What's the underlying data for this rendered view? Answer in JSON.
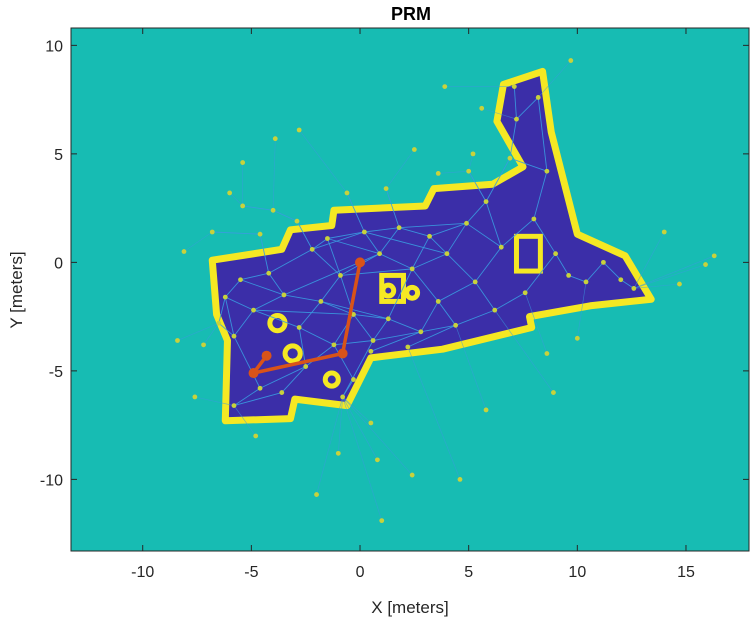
{
  "chart_data": {
    "type": "scatter",
    "title": "PRM",
    "xlabel": "X [meters]",
    "ylabel": "Y [meters]",
    "xlim": [
      -13.3,
      17.9
    ],
    "ylim": [
      -13.3,
      10.8
    ],
    "xticks": [
      -10,
      -5,
      0,
      5,
      10,
      15
    ],
    "yticks": [
      -10,
      -5,
      0,
      5,
      10
    ],
    "xtick_labels": [
      "-10",
      "-5",
      "0",
      "5",
      "10",
      "15"
    ],
    "ytick_labels": [
      "-10",
      "-5",
      "0",
      "5",
      "10"
    ],
    "grid": false,
    "legend": "none",
    "colors": {
      "background": "#17bcb3",
      "free_space": "#3b2ea8",
      "wall": "#f5e823",
      "roadmap_edge": "#3a9be0",
      "roadmap_node": "#c8d23c",
      "path": "#d95319"
    },
    "free_space_polygon": [
      [
        -6.8,
        0.1
      ],
      [
        -3.6,
        0.6
      ],
      [
        -3.2,
        1.5
      ],
      [
        -1.3,
        1.7
      ],
      [
        -1.2,
        2.4
      ],
      [
        3.0,
        2.6
      ],
      [
        3.4,
        3.4
      ],
      [
        6.1,
        3.6
      ],
      [
        7.5,
        4.4
      ],
      [
        6.3,
        6.5
      ],
      [
        6.6,
        8.2
      ],
      [
        8.4,
        8.8
      ],
      [
        8.8,
        6.0
      ],
      [
        10.0,
        1.3
      ],
      [
        12.2,
        0.3
      ],
      [
        13.4,
        -1.7
      ],
      [
        10.6,
        -2.0
      ],
      [
        7.8,
        -2.5
      ],
      [
        7.9,
        -3.0
      ],
      [
        3.8,
        -4.0
      ],
      [
        0.5,
        -4.4
      ],
      [
        -0.6,
        -6.6
      ],
      [
        -3.0,
        -6.3
      ],
      [
        -3.2,
        -7.2
      ],
      [
        -6.2,
        -7.3
      ],
      [
        -6.1,
        -3.6
      ],
      [
        -6.6,
        -2.4
      ]
    ],
    "obstacles": [
      {
        "type": "ring",
        "center": [
          -3.8,
          -2.8
        ],
        "radius": 0.35
      },
      {
        "type": "ring",
        "center": [
          -3.1,
          -4.2
        ],
        "radius": 0.35
      },
      {
        "type": "ring",
        "center": [
          -1.3,
          -5.4
        ],
        "radius": 0.3
      },
      {
        "type": "ring",
        "center": [
          2.4,
          -1.4
        ],
        "radius": 0.25
      },
      {
        "type": "ring",
        "center": [
          1.3,
          -1.3
        ],
        "radius": 0.25
      },
      {
        "type": "rect",
        "x": [
          7.2,
          8.3
        ],
        "y": [
          -0.4,
          1.2
        ]
      },
      {
        "type": "rect",
        "x": [
          1.0,
          2.0
        ],
        "y": [
          -1.8,
          -0.6
        ]
      }
    ],
    "roadmap_nodes": [
      [
        -6.2,
        -1.6
      ],
      [
        -5.8,
        -3.4
      ],
      [
        -5.5,
        -0.8
      ],
      [
        -4.9,
        -2.2
      ],
      [
        -4.6,
        -5.8
      ],
      [
        -4.2,
        -0.5
      ],
      [
        -3.5,
        -1.5
      ],
      [
        -2.8,
        -3.0
      ],
      [
        -2.5,
        -4.8
      ],
      [
        -2.2,
        0.6
      ],
      [
        -1.8,
        -1.8
      ],
      [
        -1.5,
        1.1
      ],
      [
        -1.2,
        -3.8
      ],
      [
        -0.9,
        -0.6
      ],
      [
        -0.3,
        -2.4
      ],
      [
        0.2,
        1.4
      ],
      [
        0.6,
        -3.6
      ],
      [
        0.9,
        0.4
      ],
      [
        1.3,
        -2.6
      ],
      [
        1.8,
        1.6
      ],
      [
        2.4,
        -0.3
      ],
      [
        2.8,
        -3.2
      ],
      [
        3.2,
        1.2
      ],
      [
        3.6,
        -1.8
      ],
      [
        4.0,
        0.4
      ],
      [
        4.4,
        -2.9
      ],
      [
        4.9,
        1.8
      ],
      [
        5.3,
        -0.9
      ],
      [
        5.8,
        2.8
      ],
      [
        6.2,
        -2.2
      ],
      [
        6.5,
        0.7
      ],
      [
        6.9,
        4.8
      ],
      [
        7.2,
        6.6
      ],
      [
        7.6,
        -1.4
      ],
      [
        8.0,
        2.0
      ],
      [
        8.2,
        7.6
      ],
      [
        8.6,
        4.2
      ],
      [
        9.0,
        0.4
      ],
      [
        9.6,
        -0.6
      ],
      [
        10.4,
        -0.9
      ],
      [
        11.2,
        0.0
      ],
      [
        12.0,
        -0.8
      ],
      [
        12.6,
        -1.2
      ],
      [
        -0.3,
        -5.4
      ],
      [
        -0.8,
        -6.2
      ],
      [
        -3.6,
        -6.0
      ],
      [
        -5.8,
        -6.6
      ],
      [
        0.5,
        -4.1
      ],
      [
        2.2,
        -3.9
      ],
      [
        -6.5,
        -2.8
      ],
      [
        -4.6,
        1.3
      ],
      [
        -2.9,
        1.9
      ],
      [
        -6.8,
        1.4
      ],
      [
        -5.4,
        2.6
      ],
      [
        -4.0,
        2.4
      ],
      [
        -0.6,
        3.2
      ],
      [
        1.2,
        3.4
      ],
      [
        5.0,
        4.2
      ],
      [
        7.1,
        8.1
      ]
    ],
    "roadmap_edges": [
      [
        0,
        1
      ],
      [
        0,
        2
      ],
      [
        0,
        3
      ],
      [
        1,
        3
      ],
      [
        1,
        4
      ],
      [
        2,
        5
      ],
      [
        2,
        6
      ],
      [
        3,
        6
      ],
      [
        3,
        7
      ],
      [
        4,
        8
      ],
      [
        5,
        9
      ],
      [
        5,
        6
      ],
      [
        6,
        10
      ],
      [
        7,
        8
      ],
      [
        7,
        10
      ],
      [
        7,
        12
      ],
      [
        8,
        12
      ],
      [
        9,
        11
      ],
      [
        9,
        13
      ],
      [
        10,
        13
      ],
      [
        10,
        14
      ],
      [
        11,
        15
      ],
      [
        11,
        13
      ],
      [
        12,
        14
      ],
      [
        12,
        16
      ],
      [
        13,
        17
      ],
      [
        13,
        14
      ],
      [
        14,
        18
      ],
      [
        14,
        16
      ],
      [
        15,
        17
      ],
      [
        15,
        19
      ],
      [
        16,
        18
      ],
      [
        16,
        21
      ],
      [
        17,
        20
      ],
      [
        17,
        19
      ],
      [
        18,
        20
      ],
      [
        18,
        21
      ],
      [
        19,
        22
      ],
      [
        20,
        22
      ],
      [
        20,
        23
      ],
      [
        20,
        24
      ],
      [
        21,
        23
      ],
      [
        21,
        25
      ],
      [
        22,
        24
      ],
      [
        22,
        26
      ],
      [
        23,
        25
      ],
      [
        23,
        27
      ],
      [
        24,
        27
      ],
      [
        24,
        26
      ],
      [
        25,
        29
      ],
      [
        26,
        28
      ],
      [
        26,
        30
      ],
      [
        27,
        29
      ],
      [
        27,
        30
      ],
      [
        28,
        31
      ],
      [
        28,
        30
      ],
      [
        29,
        33
      ],
      [
        30,
        34
      ],
      [
        31,
        32
      ],
      [
        31,
        36
      ],
      [
        32,
        35
      ],
      [
        33,
        37
      ],
      [
        34,
        36
      ],
      [
        34,
        37
      ],
      [
        36,
        35
      ],
      [
        37,
        38
      ],
      [
        38,
        39
      ],
      [
        39,
        40
      ],
      [
        40,
        41
      ],
      [
        41,
        42
      ],
      [
        12,
        43
      ],
      [
        43,
        44
      ],
      [
        44,
        16
      ],
      [
        45,
        8
      ],
      [
        45,
        46
      ],
      [
        46,
        4
      ],
      [
        47,
        21
      ],
      [
        48,
        25
      ],
      [
        49,
        0
      ],
      [
        49,
        1
      ],
      [
        50,
        5
      ],
      [
        51,
        9
      ],
      [
        52,
        50
      ],
      [
        53,
        54
      ],
      [
        54,
        51
      ],
      [
        55,
        15
      ],
      [
        56,
        19
      ],
      [
        57,
        28
      ],
      [
        58,
        32
      ],
      [
        10,
        18
      ],
      [
        6,
        17
      ],
      [
        3,
        14
      ],
      [
        13,
        20
      ],
      [
        15,
        24
      ],
      [
        19,
        26
      ],
      [
        11,
        17
      ],
      [
        9,
        15
      ]
    ],
    "outlier_nodes": [
      [
        -3.9,
        5.7
      ],
      [
        -2.8,
        6.1
      ],
      [
        -5.4,
        4.6
      ],
      [
        -6.0,
        3.2
      ],
      [
        -8.1,
        0.5
      ],
      [
        -8.4,
        -3.6
      ],
      [
        -7.2,
        -3.8
      ],
      [
        2.5,
        5.2
      ],
      [
        3.6,
        4.1
      ],
      [
        5.2,
        5.0
      ],
      [
        5.6,
        7.1
      ],
      [
        3.9,
        8.1
      ],
      [
        9.7,
        9.3
      ],
      [
        14.7,
        -1.0
      ],
      [
        15.9,
        -0.1
      ],
      [
        16.3,
        0.3
      ],
      [
        14.0,
        1.4
      ],
      [
        1.0,
        -11.9
      ],
      [
        -1.0,
        -8.8
      ],
      [
        -2.0,
        -10.7
      ],
      [
        0.8,
        -9.1
      ],
      [
        4.6,
        -10.0
      ],
      [
        2.4,
        -9.8
      ],
      [
        5.8,
        -6.8
      ],
      [
        8.9,
        -6.0
      ],
      [
        8.6,
        -4.2
      ],
      [
        10.0,
        -3.5
      ],
      [
        -7.6,
        -6.2
      ],
      [
        -4.8,
        -8.0
      ],
      [
        0.5,
        -7.4
      ]
    ],
    "path": {
      "x": [
        -4.3,
        -4.9,
        -0.8,
        0.0
      ],
      "y": [
        -4.3,
        -5.1,
        -4.2,
        0.0
      ]
    }
  }
}
